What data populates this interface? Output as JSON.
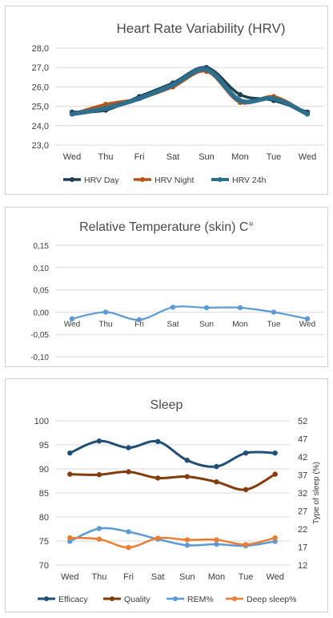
{
  "chart_data": [
    {
      "type": "line",
      "title": "Heart Rate Variability (HRV)",
      "categories": [
        "Wed",
        "Thu",
        "Fri",
        "Sat",
        "Sun",
        "Mon",
        "Tue",
        "Wed"
      ],
      "ylim": [
        23.0,
        28.0
      ],
      "yticks": [
        "23,0",
        "24,0",
        "25,0",
        "26,0",
        "27,0",
        "28,0"
      ],
      "grid": true,
      "legend": "bottom",
      "series": [
        {
          "name": "HRV Day",
          "color": "#1f3f52",
          "values": [
            24.7,
            24.8,
            25.5,
            26.2,
            27.0,
            25.6,
            25.3,
            24.7
          ]
        },
        {
          "name": "HRV Night",
          "color": "#b5541a",
          "values": [
            24.6,
            25.1,
            25.4,
            26.0,
            26.8,
            25.2,
            25.5,
            24.6
          ]
        },
        {
          "name": "HRV 24h",
          "color": "#2d6f8f",
          "values": [
            24.6,
            24.9,
            25.4,
            26.1,
            26.9,
            25.3,
            25.4,
            24.6
          ]
        }
      ]
    },
    {
      "type": "line",
      "title": "Relative Temperature (skin) C°",
      "categories": [
        "Wed",
        "Thu",
        "Fri",
        "Sat",
        "Sun",
        "Mon",
        "Tue",
        "Wed"
      ],
      "ylim": [
        -0.1,
        0.15
      ],
      "yticks": [
        "-0,10",
        "-0,05",
        "0,00",
        "0,05",
        "0,10",
        "0,15"
      ],
      "grid": true,
      "series": [
        {
          "color": "#5b9bd5",
          "values": [
            -0.015,
            0.0,
            -0.017,
            0.011,
            0.01,
            0.01,
            0.0,
            -0.015
          ]
        }
      ]
    },
    {
      "type": "line",
      "title": "Sleep",
      "categories": [
        "Wed",
        "Thu",
        "Fri",
        "Sat",
        "Sun",
        "Mon",
        "Tue",
        "Wed"
      ],
      "ylim": [
        70,
        100
      ],
      "yticks": [
        "70",
        "75",
        "80",
        "85",
        "90",
        "95",
        "100"
      ],
      "y2label": "Type of sleep (%)",
      "y2lim": [
        12,
        57
      ],
      "y2ticks": [
        "12",
        "17",
        "22",
        "27",
        "32",
        "37",
        "42",
        "47",
        "52"
      ],
      "grid": true,
      "legend": "bottom",
      "series": [
        {
          "name": "Efficacy",
          "axis": "left",
          "color": "#1f4e79",
          "values": [
            93.3,
            95.8,
            94.4,
            95.7,
            91.8,
            90.5,
            93.3,
            93.3
          ]
        },
        {
          "name": "Quality",
          "axis": "left",
          "color": "#843c0c",
          "values": [
            88.9,
            88.8,
            89.4,
            88.1,
            88.4,
            87.3,
            85.7,
            88.9
          ]
        },
        {
          "name": "REM%",
          "axis": "right",
          "color": "#5b9bd5",
          "values": [
            19.4,
            23.4,
            22.4,
            20.1,
            18.2,
            18.5,
            18.0,
            19.4
          ]
        },
        {
          "name": "Deep sleep%",
          "axis": "right",
          "color": "#ed7d31",
          "values": [
            20.5,
            20.1,
            17.5,
            20.4,
            19.9,
            19.9,
            18.4,
            20.5
          ]
        }
      ]
    }
  ]
}
